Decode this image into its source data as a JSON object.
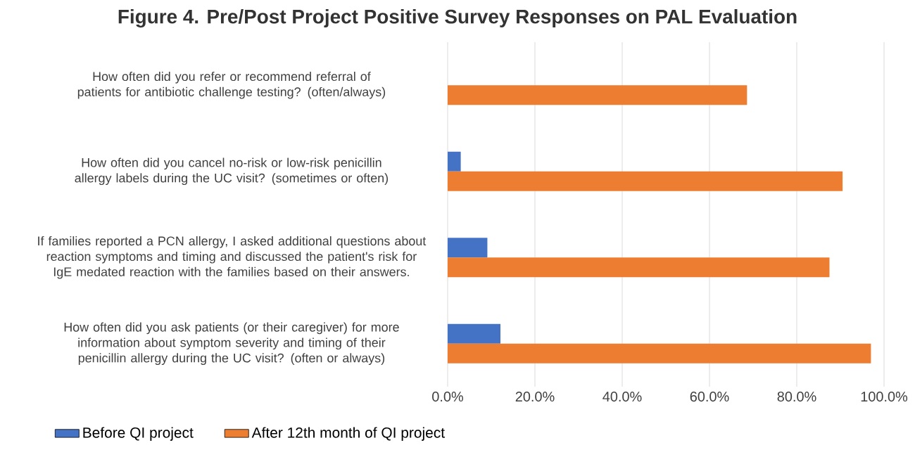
{
  "chart_data": {
    "type": "bar",
    "orientation": "horizontal",
    "title": "Figure 4. Pre/Post Project Positive Survey Responses on PAL Evaluation",
    "categories": [
      "How often did you refer or recommend referral of patients for antibiotic challenge testing? (often/always)",
      "How often did you cancel no-risk or low-risk penicillin allergy labels during the UC visit? (sometimes or often)",
      "If families reported a PCN allergy, I asked additional questions about reaction symptoms and timing and discussed the patient's risk for IgE medated reaction with the families based on their answers.",
      "How often did you ask patients (or their caregiver) for more information about symptom severity and timing of their penicillin allergy during the UC visit? (often or always)"
    ],
    "series": [
      {
        "name": "Before QI project",
        "color": "#4472c4",
        "values": [
          0,
          3.0,
          9.1,
          12.1
        ]
      },
      {
        "name": "After 12th month of QI project",
        "color": "#ed7d31",
        "values": [
          68.6,
          90.5,
          87.5,
          97.0
        ]
      }
    ],
    "xlim": [
      0,
      100
    ],
    "xticks": [
      {
        "value": 0,
        "label": "0.0%"
      },
      {
        "value": 20,
        "label": "20.0%"
      },
      {
        "value": 40,
        "label": "40.0%"
      },
      {
        "value": 60,
        "label": "60.0%"
      },
      {
        "value": 80,
        "label": "80.0%"
      },
      {
        "value": 100,
        "label": "100.0%"
      }
    ],
    "grid": "x",
    "legend": "bottom"
  }
}
